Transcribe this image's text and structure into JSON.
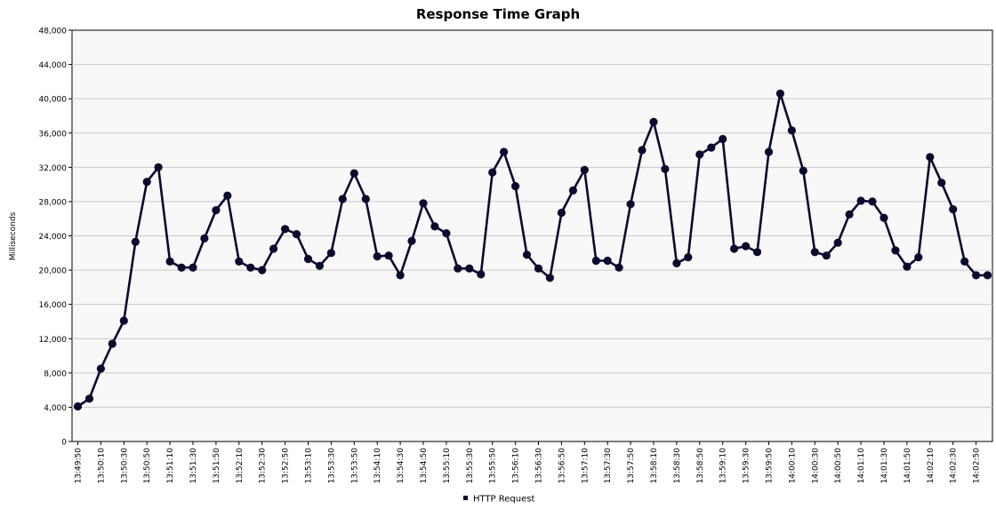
{
  "chart_data": {
    "type": "line",
    "title": "Response Time Graph",
    "ylabel": "Milliseconds",
    "xlabel": "",
    "ylim": [
      0,
      48000
    ],
    "yticks": [
      0,
      4000,
      8000,
      12000,
      16000,
      20000,
      24000,
      28000,
      32000,
      36000,
      40000,
      44000,
      48000
    ],
    "ytick_labels": [
      "0",
      "4,000",
      "8,000",
      "12,000",
      "16,000",
      "20,000",
      "24,000",
      "28,000",
      "32,000",
      "36,000",
      "40,000",
      "44,000",
      "48,000"
    ],
    "x_ticks": [
      "13:49:50",
      "13:50:10",
      "13:50:30",
      "13:50:50",
      "13:51:10",
      "13:51:30",
      "13:51:50",
      "13:52:10",
      "13:52:30",
      "13:52:50",
      "13:53:10",
      "13:53:30",
      "13:53:50",
      "13:54:10",
      "13:54:30",
      "13:54:50",
      "13:55:10",
      "13:55:30",
      "13:55:50",
      "13:56:10",
      "13:56:30",
      "13:56:50",
      "13:57:10",
      "13:57:30",
      "13:57:50",
      "13:58:10",
      "13:58:30",
      "13:58:50",
      "13:59:10",
      "13:59:30",
      "13:59:50",
      "14:00:10",
      "14:00:30",
      "14:00:50",
      "14:01:10",
      "14:01:30",
      "14:01:50",
      "14:02:10",
      "14:02:30",
      "14:02:50"
    ],
    "grid": true,
    "legend_position": "bottom",
    "colors": {
      "series": "#0a0a2e",
      "grid": "#c8c8c8",
      "plot_bg": "#f8f8f8"
    },
    "series": [
      {
        "name": "HTTP Request",
        "values": [
          4100,
          5000,
          8500,
          11400,
          14100,
          23300,
          30300,
          32000,
          21000,
          20300,
          20300,
          23700,
          27000,
          28700,
          21000,
          20300,
          20000,
          22500,
          24800,
          24200,
          21300,
          20500,
          22000,
          28300,
          31300,
          28300,
          21600,
          21700,
          19400,
          23400,
          27800,
          25100,
          24300,
          20200,
          20200,
          19500,
          31400,
          33800,
          29800,
          21800,
          20200,
          19100,
          26700,
          29300,
          31700,
          21100,
          21100,
          20300,
          27700,
          34000,
          37300,
          31800,
          20800,
          21500,
          33500,
          34300,
          35300,
          22500,
          22800,
          22100,
          33800,
          40600,
          36300,
          31600,
          22100,
          21700,
          23200,
          26500,
          28100,
          28000,
          26100,
          22300,
          20400,
          21500,
          33200,
          30200,
          27100,
          21000,
          19400,
          19400
        ]
      }
    ]
  }
}
